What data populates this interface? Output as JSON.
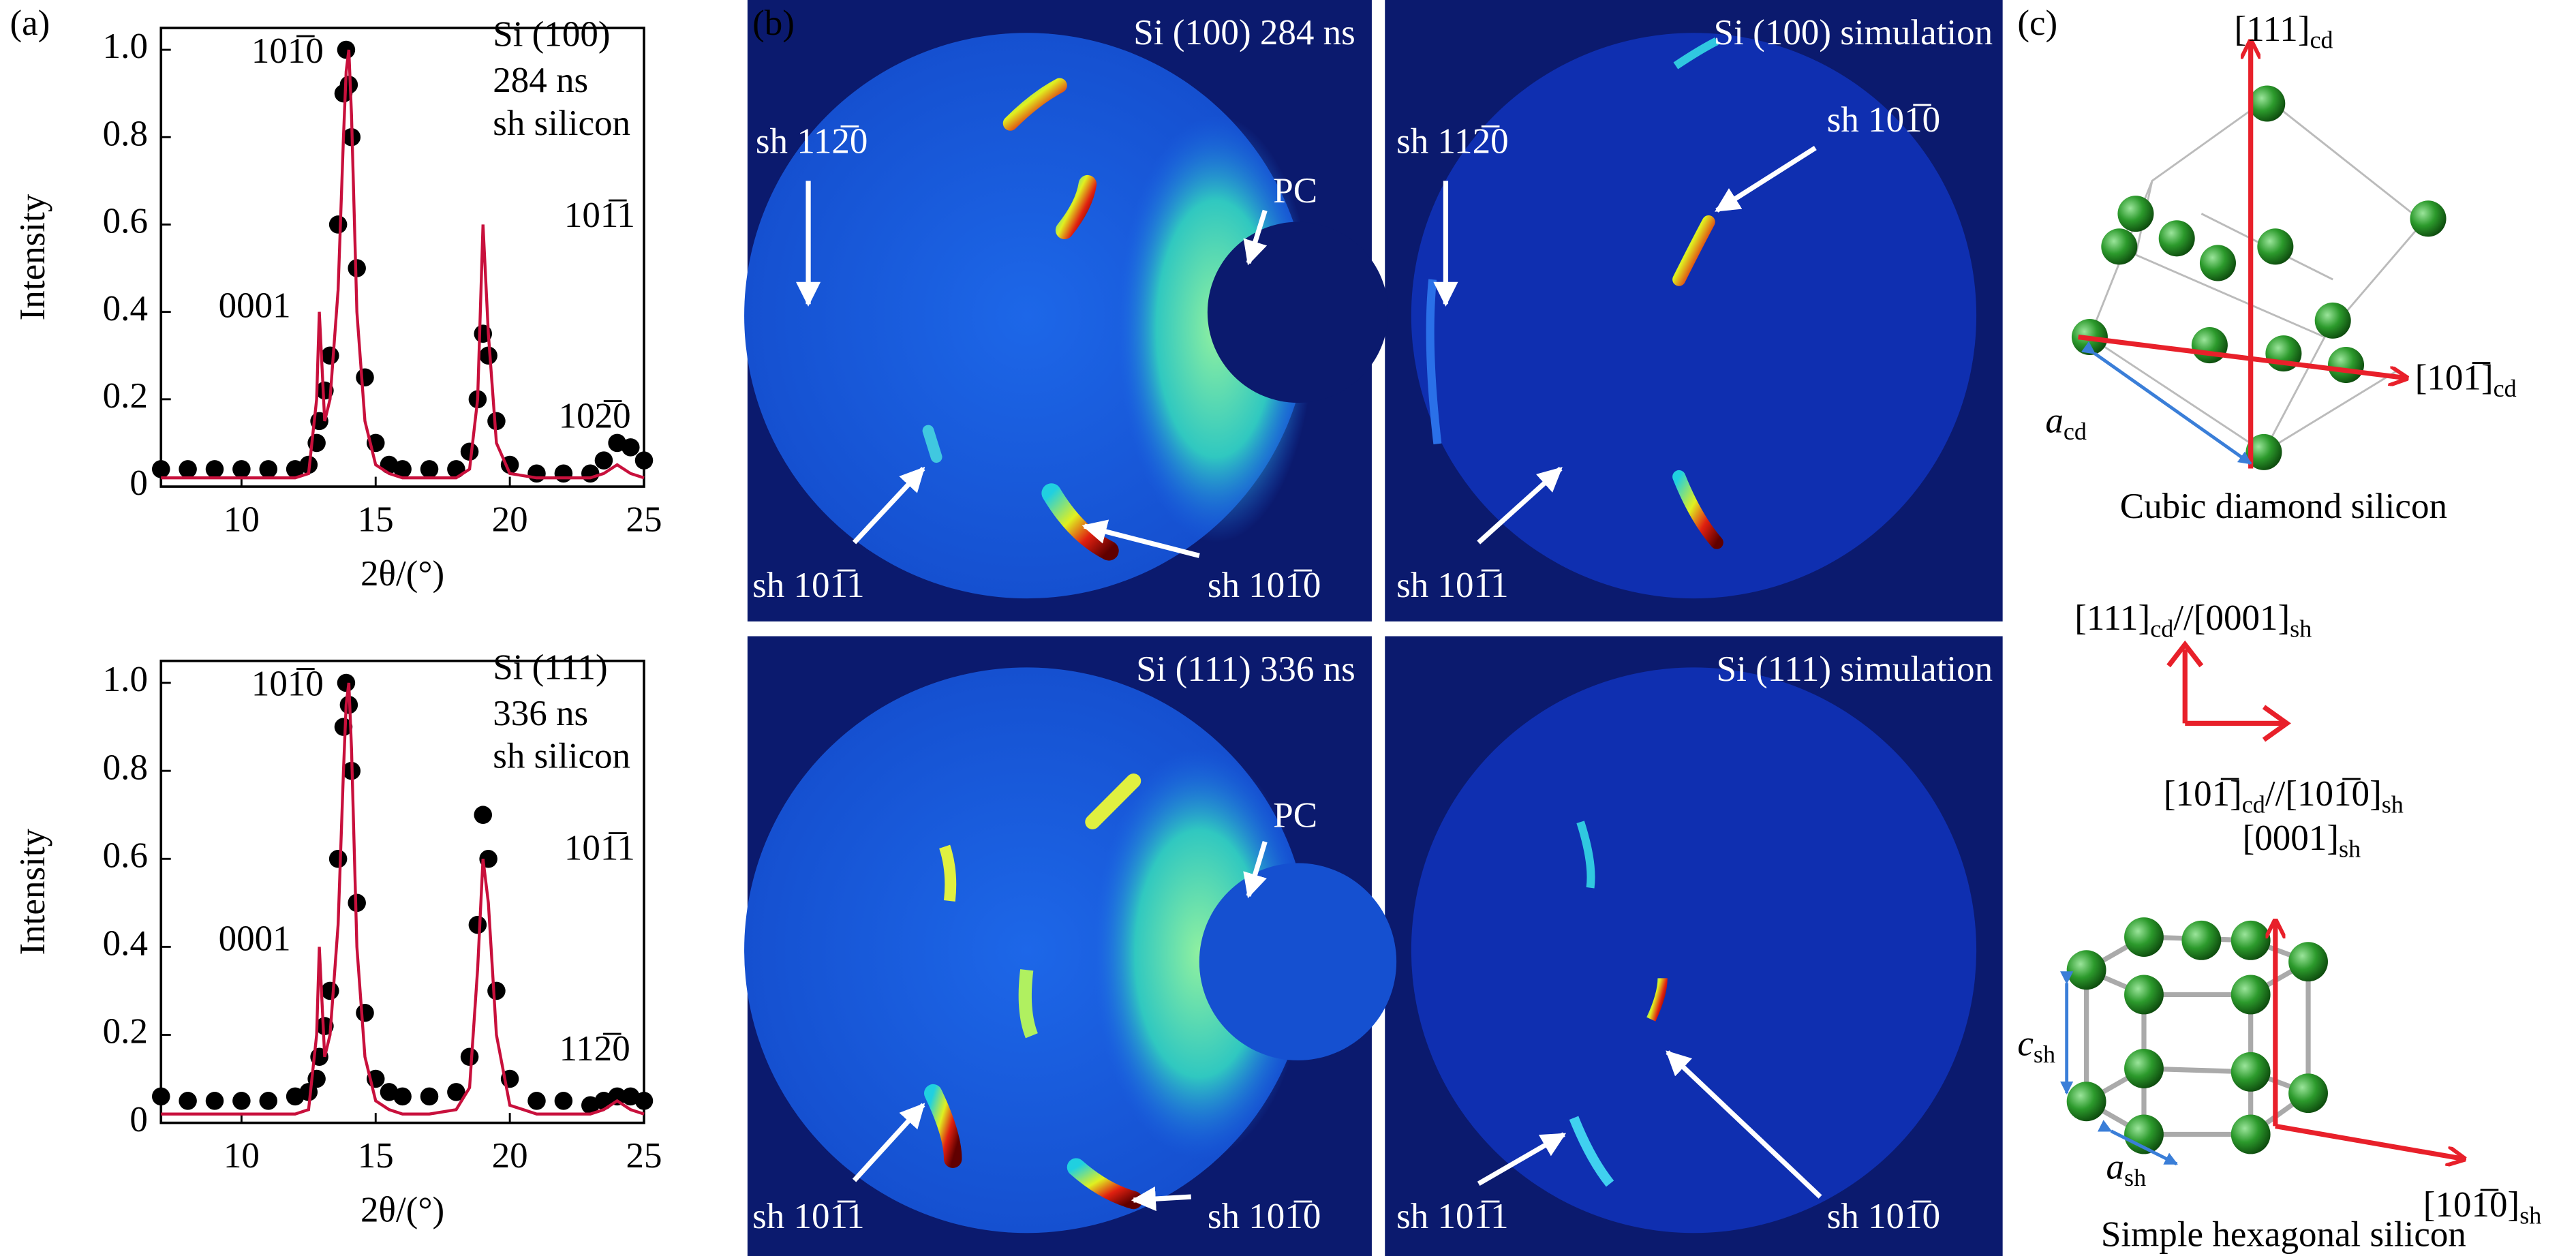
{
  "panel_labels": [
    "(a)",
    "(b)",
    "(c)"
  ],
  "chart_data": [
    {
      "type": "line",
      "xlabel": "2θ/(°)",
      "ylabel": "Intensity",
      "x": [
        7,
        8,
        9,
        10,
        11,
        12,
        12.5,
        12.8,
        12.9,
        13.1,
        13.3,
        13.6,
        13.8,
        13.9,
        14.0,
        14.1,
        14.3,
        14.6,
        15,
        15.5,
        16,
        17,
        18,
        18.5,
        18.8,
        19,
        19.2,
        19.5,
        20,
        21,
        22,
        23,
        23.5,
        24,
        24.5,
        25
      ],
      "xlim": [
        7,
        25
      ],
      "xticks": [
        10,
        15,
        20,
        25
      ],
      "ylim": [
        0,
        1.05
      ],
      "yticks": [
        0,
        0.2,
        0.4,
        0.6,
        0.8,
        {
          "value": 1,
          "label": "1.0"
        }
      ],
      "series": [
        {
          "color": "#000000",
          "values": [
            0.04,
            0.04,
            0.04,
            0.04,
            0.04,
            0.04,
            0.05,
            0.1,
            0.15,
            0.22,
            0.3,
            0.6,
            0.9,
            1.0,
            0.92,
            0.8,
            0.5,
            0.25,
            0.1,
            0.05,
            0.04,
            0.04,
            0.04,
            0.08,
            0.2,
            0.35,
            0.3,
            0.15,
            0.05,
            0.03,
            0.03,
            0.03,
            0.06,
            0.1,
            0.09,
            0.06
          ]
        },
        {
          "color": "#c8103c",
          "values": [
            0.02,
            0.02,
            0.02,
            0.02,
            0.02,
            0.02,
            0.03,
            0.2,
            0.4,
            0.15,
            0.2,
            0.45,
            0.8,
            0.95,
            1.0,
            0.85,
            0.4,
            0.15,
            0.05,
            0.03,
            0.02,
            0.02,
            0.02,
            0.04,
            0.2,
            0.6,
            0.35,
            0.1,
            0.03,
            0.02,
            0.02,
            0.02,
            0.03,
            0.05,
            0.03,
            0.02
          ]
        }
      ],
      "annotations": [
        "Si (100)",
        "284 ns",
        "sh silicon",
        "101̅0",
        "0001",
        "101̅1",
        "102̅0"
      ]
    },
    {
      "type": "line",
      "xlabel": "2θ/(°)",
      "ylabel": "Intensity",
      "x": [
        7,
        8,
        9,
        10,
        11,
        12,
        12.5,
        12.8,
        12.9,
        13.1,
        13.3,
        13.6,
        13.8,
        13.9,
        14.0,
        14.1,
        14.3,
        14.6,
        15,
        15.5,
        16,
        17,
        18,
        18.5,
        18.8,
        19,
        19.2,
        19.5,
        20,
        21,
        22,
        23,
        23.5,
        24,
        24.5,
        25
      ],
      "xlim": [
        7,
        25
      ],
      "xticks": [
        10,
        15,
        20,
        25
      ],
      "ylim": [
        0,
        1.05
      ],
      "yticks": [
        0,
        0.2,
        0.4,
        0.6,
        0.8,
        {
          "value": 1,
          "label": "1.0"
        }
      ],
      "series": [
        {
          "color": "#000000",
          "values": [
            0.06,
            0.05,
            0.05,
            0.05,
            0.05,
            0.06,
            0.07,
            0.1,
            0.15,
            0.22,
            0.3,
            0.6,
            0.9,
            1.0,
            0.95,
            0.8,
            0.5,
            0.25,
            0.1,
            0.07,
            0.06,
            0.06,
            0.07,
            0.15,
            0.45,
            0.7,
            0.6,
            0.3,
            0.1,
            0.05,
            0.05,
            0.04,
            0.05,
            0.06,
            0.06,
            0.05
          ]
        },
        {
          "color": "#c8103c",
          "values": [
            0.02,
            0.02,
            0.02,
            0.02,
            0.02,
            0.02,
            0.03,
            0.2,
            0.4,
            0.15,
            0.2,
            0.45,
            0.8,
            0.95,
            1.0,
            0.85,
            0.4,
            0.15,
            0.05,
            0.03,
            0.02,
            0.02,
            0.03,
            0.08,
            0.35,
            0.6,
            0.5,
            0.2,
            0.04,
            0.02,
            0.02,
            0.02,
            0.03,
            0.05,
            0.03,
            0.02
          ]
        }
      ],
      "annotations": [
        "Si (111)",
        "336 ns",
        "sh silicon",
        "101̅0",
        "0001",
        "101̅1",
        "112̅0"
      ]
    }
  ],
  "panel_b": {
    "images": [
      {
        "title": "Si (100) 284 ns",
        "labels": [
          "sh 112̅0",
          "PC",
          "sh 101̅1",
          "sh 101̅0"
        ]
      },
      {
        "title": "Si (100) simulation",
        "labels": [
          "sh 112̅0",
          "sh 101̅0",
          "sh 101̅1"
        ]
      },
      {
        "title": "Si (111) 336 ns",
        "labels": [
          "PC",
          "sh 101̅1",
          "sh 101̅0"
        ]
      },
      {
        "title": "Si (111) simulation",
        "labels": [
          "sh 101̅1",
          "sh 101̅0"
        ]
      }
    ]
  },
  "panel_c": {
    "labels": [
      [
        "[111]",
        "cd"
      ],
      [
        "[101̅]",
        "cd"
      ],
      [
        "a",
        "cd"
      ],
      [
        "Cubic diamond silicon"
      ],
      [
        "[111]",
        "cd",
        "//[0001]",
        "sh"
      ],
      [
        "[101̅]",
        "cd",
        "//[101̅0]",
        "sh"
      ],
      [
        "[0001]",
        "sh"
      ],
      [
        "c",
        "sh"
      ],
      [
        "a",
        "sh"
      ],
      [
        "[101̅0]",
        "sh"
      ],
      [
        "Simple hexagonal silicon"
      ]
    ]
  }
}
